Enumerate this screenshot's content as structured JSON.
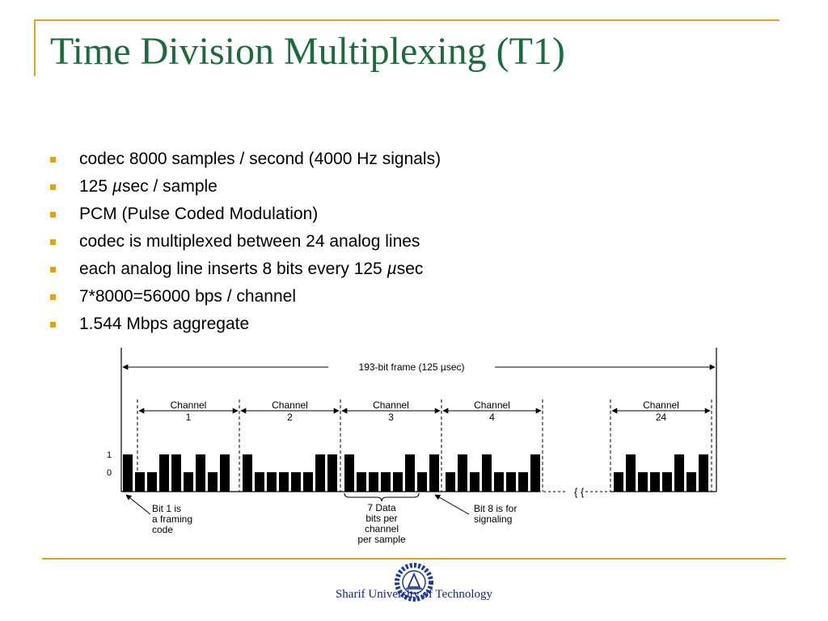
{
  "slide": {
    "title": "Time Division Multiplexing (T1)",
    "bullets": [
      {
        "pre": "codec 8000 samples / second (4000 Hz signals)",
        "unit": "",
        "post": ""
      },
      {
        "pre": "125 ",
        "unit": "µ",
        "post": "sec / sample"
      },
      {
        "pre": "PCM (Pulse Coded Modulation)",
        "unit": "",
        "post": ""
      },
      {
        "pre": "codec is multiplexed between 24 analog lines",
        "unit": "",
        "post": ""
      },
      {
        "pre": "each analog line inserts 8 bits every 125 ",
        "unit": "µ",
        "post": "sec"
      },
      {
        "pre": "7*8000=56000 bps / channel",
        "unit": "",
        "post": ""
      },
      {
        "pre": "1.544 Mbps aggregate",
        "unit": "",
        "post": ""
      }
    ],
    "footer": "Sharif University of Technology",
    "accent_color": "#d9a520",
    "title_color": "#1c6b3c"
  },
  "diagram": {
    "frame_label": "193-bit frame  (125 µsec)",
    "level_high": "1",
    "level_low": "0",
    "channels": [
      {
        "label": "Channel",
        "number": "1",
        "bits": [
          1,
          0,
          0,
          1,
          1,
          0,
          1,
          0,
          1
        ]
      },
      {
        "label": "Channel",
        "number": "2",
        "bits": [
          1,
          0,
          0,
          0,
          0,
          0,
          1,
          1
        ]
      },
      {
        "label": "Channel",
        "number": "3",
        "bits": [
          1,
          0,
          0,
          0,
          0,
          1,
          0,
          1
        ]
      },
      {
        "label": "Channel",
        "number": "4",
        "bits": [
          0,
          1,
          0,
          1,
          0,
          0,
          0,
          1
        ]
      },
      {
        "label": "Channel",
        "number": "24",
        "bits": [
          0,
          1,
          0,
          0,
          0,
          1,
          0,
          1
        ]
      }
    ],
    "annotations": {
      "bit1": [
        "Bit 1 is",
        "a framing",
        "code"
      ],
      "data": [
        "7 Data",
        "bits per",
        "channel",
        "per sample"
      ],
      "bit8": [
        "Bit 8 is for",
        "signaling"
      ]
    },
    "break_symbol": "{ {"
  }
}
